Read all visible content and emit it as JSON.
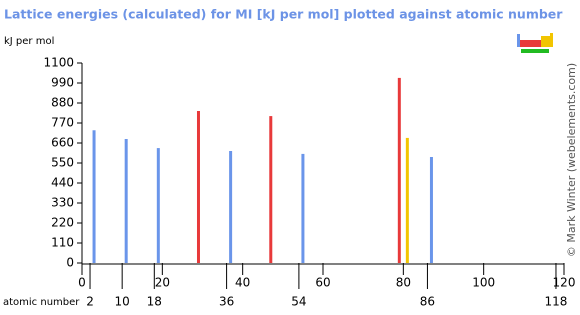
{
  "chart_data": {
    "type": "bar",
    "title": "Lattice energies (calculated) for MI [kJ per mol] plotted against atomic number",
    "y_label": "kJ per mol",
    "x_label": "atomic number",
    "credit": "© Mark Winter (webelements.com)",
    "xlim": [
      0,
      120
    ],
    "xticks": [
      0,
      20,
      40,
      60,
      80,
      100,
      120
    ],
    "group_ticks": [
      2,
      10,
      18,
      36,
      54,
      86,
      118
    ],
    "ylim": [
      0,
      1100
    ],
    "yticks": [
      0,
      110,
      220,
      330,
      440,
      550,
      660,
      770,
      880,
      990,
      1100
    ],
    "series": [
      {
        "color": "#6a95ea",
        "x": [
          3,
          11,
          19,
          37,
          55,
          87
        ],
        "values": [
          730,
          682,
          632,
          616,
          600,
          583
        ]
      },
      {
        "color": "#e8393a",
        "x": [
          29,
          47,
          79
        ],
        "values": [
          836,
          808,
          1018
        ]
      },
      {
        "color": "#f2c500",
        "x": [
          81
        ],
        "values": [
          688
        ]
      }
    ]
  }
}
